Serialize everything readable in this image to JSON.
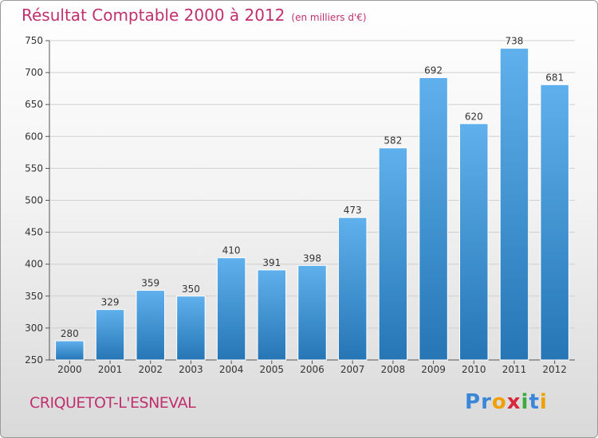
{
  "header": {
    "title": "Résultat Comptable 2000 à 2012",
    "subtitle": "(en milliers d'€)"
  },
  "footer": {
    "commune": "CRIQUETOT-L'ESNEVAL"
  },
  "logo": {
    "letters": [
      "P",
      "r",
      "o",
      "x",
      "i",
      "t",
      "i"
    ],
    "colors": [
      "#3a86d8",
      "#3a86d8",
      "#f0a000",
      "#d8263c",
      "#3caa3c",
      "#3a86d8",
      "#f0a000"
    ]
  },
  "colors": {
    "bar_top": "#5fb0ec",
    "bar_bottom": "#2676b6",
    "title": "#c0306f"
  },
  "chart_data": {
    "type": "bar",
    "categories": [
      "2000",
      "2001",
      "2002",
      "2003",
      "2004",
      "2005",
      "2006",
      "2007",
      "2008",
      "2009",
      "2010",
      "2011",
      "2012"
    ],
    "values": [
      280,
      329,
      359,
      350,
      410,
      391,
      398,
      473,
      582,
      692,
      620,
      738,
      681
    ],
    "ylim": [
      250,
      750
    ],
    "yticks": [
      250,
      300,
      350,
      400,
      450,
      500,
      550,
      600,
      650,
      700,
      750
    ],
    "grid": true
  }
}
